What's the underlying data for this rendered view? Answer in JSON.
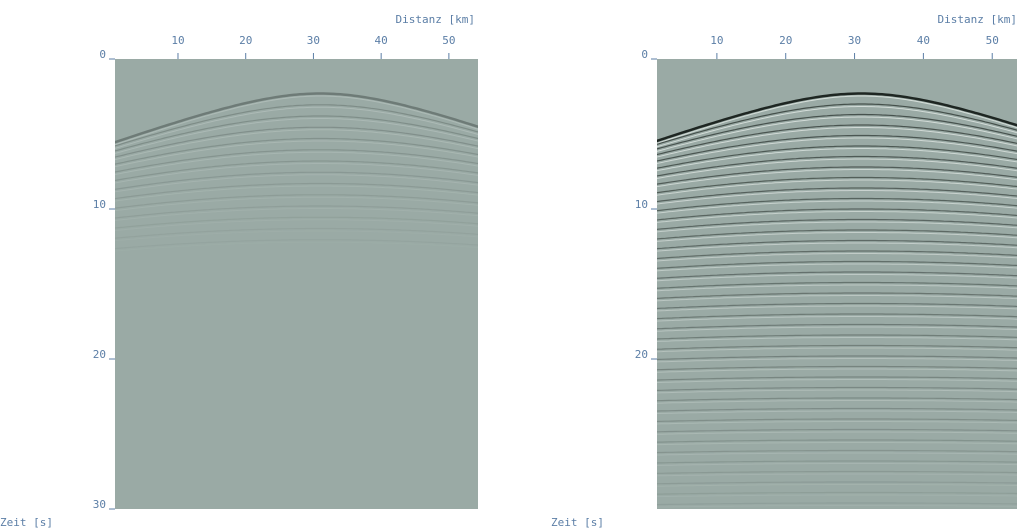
{
  "panels": [
    {
      "xlabel": "Distanz [km]",
      "ylabel": "Zeit [s]",
      "xlim": [
        0.7,
        54.3
      ],
      "ylim": [
        0,
        30
      ],
      "xticks": [
        10,
        20,
        30,
        40,
        50
      ],
      "yticks": [
        0,
        10,
        20,
        30
      ]
    },
    {
      "xlabel": "Distanz [km]",
      "ylabel": "Zeit [s]",
      "xlim": [
        1.3,
        53.6
      ],
      "ylim": [
        0,
        30
      ],
      "xticks": [
        10,
        20,
        30,
        40,
        50
      ],
      "yticks": [
        0,
        10,
        20
      ]
    }
  ]
}
